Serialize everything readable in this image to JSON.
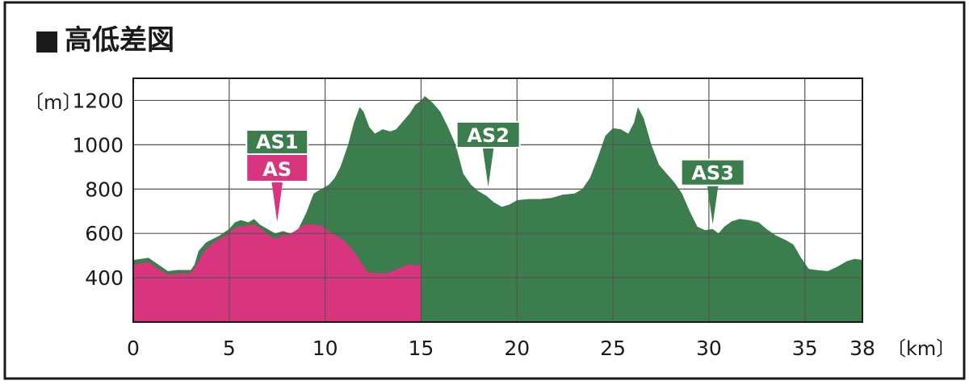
{
  "heading": {
    "marker": "■",
    "title": "高低差図"
  },
  "chart_data": {
    "type": "area",
    "title": "高低差図",
    "xlabel": "〔km〕",
    "ylabel": "〔m〕",
    "xlim": [
      0,
      38
    ],
    "ylim": [
      200,
      1300
    ],
    "x_ticks": [
      0,
      5,
      10,
      15,
      20,
      25,
      30,
      35,
      38
    ],
    "y_ticks": [
      400,
      600,
      800,
      1000,
      1200
    ],
    "grid": true,
    "series": [
      {
        "color": "#3b7d4c",
        "points": [
          [
            0,
            480
          ],
          [
            0.8,
            490
          ],
          [
            1.3,
            460
          ],
          [
            1.8,
            430
          ],
          [
            2.3,
            435
          ],
          [
            3.0,
            435
          ],
          [
            3.2,
            460
          ],
          [
            3.4,
            520
          ],
          [
            3.8,
            560
          ],
          [
            4.5,
            590
          ],
          [
            5.0,
            620
          ],
          [
            5.3,
            650
          ],
          [
            5.6,
            660
          ],
          [
            6.0,
            650
          ],
          [
            6.3,
            665
          ],
          [
            6.6,
            640
          ],
          [
            7.0,
            620
          ],
          [
            7.4,
            600
          ],
          [
            7.8,
            610
          ],
          [
            8.2,
            600
          ],
          [
            8.6,
            620
          ],
          [
            9.0,
            690
          ],
          [
            9.4,
            780
          ],
          [
            9.8,
            800
          ],
          [
            10.2,
            820
          ],
          [
            10.5,
            850
          ],
          [
            10.8,
            900
          ],
          [
            11.2,
            1000
          ],
          [
            11.5,
            1100
          ],
          [
            11.8,
            1170
          ],
          [
            12.0,
            1150
          ],
          [
            12.3,
            1080
          ],
          [
            12.6,
            1050
          ],
          [
            13.0,
            1070
          ],
          [
            13.4,
            1060
          ],
          [
            13.7,
            1070
          ],
          [
            14.0,
            1100
          ],
          [
            14.4,
            1140
          ],
          [
            14.7,
            1180
          ],
          [
            15.0,
            1200
          ],
          [
            15.2,
            1220
          ],
          [
            15.6,
            1190
          ],
          [
            16.0,
            1150
          ],
          [
            16.4,
            1080
          ],
          [
            16.8,
            1000
          ],
          [
            17.2,
            870
          ],
          [
            17.6,
            820
          ],
          [
            18.0,
            790
          ],
          [
            18.4,
            770
          ],
          [
            18.8,
            740
          ],
          [
            19.2,
            720
          ],
          [
            19.6,
            730
          ],
          [
            20.0,
            750
          ],
          [
            20.6,
            755
          ],
          [
            21.2,
            755
          ],
          [
            21.8,
            760
          ],
          [
            22.4,
            775
          ],
          [
            23.0,
            780
          ],
          [
            23.4,
            800
          ],
          [
            23.8,
            850
          ],
          [
            24.2,
            940
          ],
          [
            24.6,
            1040
          ],
          [
            25.0,
            1075
          ],
          [
            25.4,
            1070
          ],
          [
            25.8,
            1050
          ],
          [
            26.1,
            1100
          ],
          [
            26.3,
            1170
          ],
          [
            26.6,
            1120
          ],
          [
            27.0,
            1000
          ],
          [
            27.4,
            910
          ],
          [
            27.8,
            870
          ],
          [
            28.2,
            830
          ],
          [
            28.6,
            780
          ],
          [
            29.0,
            700
          ],
          [
            29.4,
            630
          ],
          [
            29.8,
            615
          ],
          [
            30.2,
            620
          ],
          [
            30.5,
            600
          ],
          [
            30.8,
            630
          ],
          [
            31.2,
            655
          ],
          [
            31.6,
            665
          ],
          [
            32.1,
            660
          ],
          [
            32.6,
            650
          ],
          [
            33.0,
            620
          ],
          [
            33.5,
            590
          ],
          [
            34.0,
            570
          ],
          [
            34.4,
            550
          ],
          [
            34.8,
            490
          ],
          [
            35.2,
            440
          ],
          [
            35.6,
            435
          ],
          [
            36.2,
            430
          ],
          [
            36.7,
            450
          ],
          [
            37.2,
            475
          ],
          [
            37.6,
            485
          ],
          [
            38.0,
            480
          ]
        ]
      },
      {
        "name": "AS",
        "color": "#d9357f",
        "points": [
          [
            0,
            460
          ],
          [
            0.8,
            470
          ],
          [
            1.3,
            440
          ],
          [
            1.8,
            415
          ],
          [
            2.5,
            420
          ],
          [
            3.0,
            420
          ],
          [
            3.3,
            460
          ],
          [
            3.7,
            520
          ],
          [
            4.2,
            560
          ],
          [
            4.8,
            590
          ],
          [
            5.3,
            625
          ],
          [
            5.8,
            635
          ],
          [
            6.3,
            640
          ],
          [
            6.7,
            620
          ],
          [
            7.1,
            590
          ],
          [
            7.4,
            575
          ],
          [
            7.8,
            595
          ],
          [
            8.1,
            590
          ],
          [
            8.5,
            615
          ],
          [
            8.9,
            640
          ],
          [
            9.3,
            640
          ],
          [
            9.8,
            635
          ],
          [
            10.2,
            610
          ],
          [
            10.8,
            580
          ],
          [
            11.3,
            540
          ],
          [
            11.8,
            480
          ],
          [
            12.2,
            425
          ],
          [
            12.7,
            420
          ],
          [
            13.2,
            420
          ],
          [
            13.8,
            440
          ],
          [
            14.3,
            460
          ],
          [
            14.8,
            455
          ],
          [
            15.0,
            455
          ]
        ]
      }
    ],
    "annotations": [
      {
        "stacked_label": "AS1",
        "label": "AS",
        "x": 7.5,
        "y": 630
      },
      {
        "label": "AS2",
        "x": 18.5,
        "y": 790
      },
      {
        "label": "AS3",
        "x": 30.2,
        "y": 620
      }
    ],
    "colors": {
      "green": "#3b7d4c",
      "magenta": "#d9357f",
      "grid": "#555555",
      "text": "#1a1a1a"
    }
  }
}
